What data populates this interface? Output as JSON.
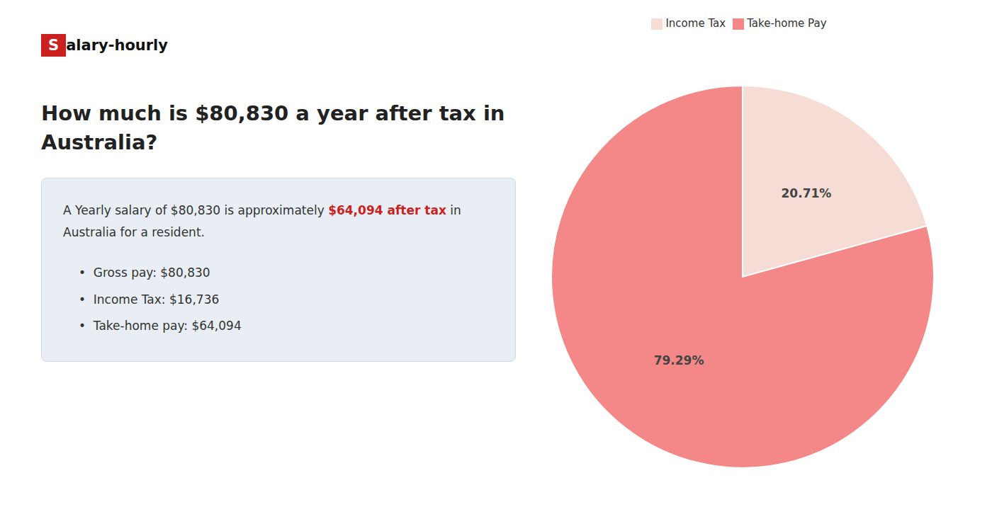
{
  "chart_data": {
    "type": "pie",
    "title": "How much is $80,830 a year after tax in\nAustralia?",
    "categories": [
      "Income Tax",
      "Take-home Pay"
    ],
    "values": [
      20.71,
      79.29
    ],
    "value_labels": [
      "20.71%",
      "79.29%"
    ],
    "colors": [
      "#f5ddd5",
      "#f48888"
    ],
    "data_labels": true,
    "legend": "top",
    "annotations": [
      {
        "text": "S",
        "color": "#cc1f1f"
      },
      {
        "text": "alary-hourly"
      },
      {
        "text": "A Yearly salary of $80,830 is approximately "
      },
      {
        "text": "$64,094 after tax",
        "color": "#cc1f1f"
      },
      {
        "text": " in"
      },
      {
        "text": "Australia for a resident."
      },
      {
        "text": "•  Gross pay: $80,830"
      },
      {
        "text": "•  Income Tax: $16,736"
      },
      {
        "text": "•  Take-home pay: $64,094"
      }
    ]
  }
}
